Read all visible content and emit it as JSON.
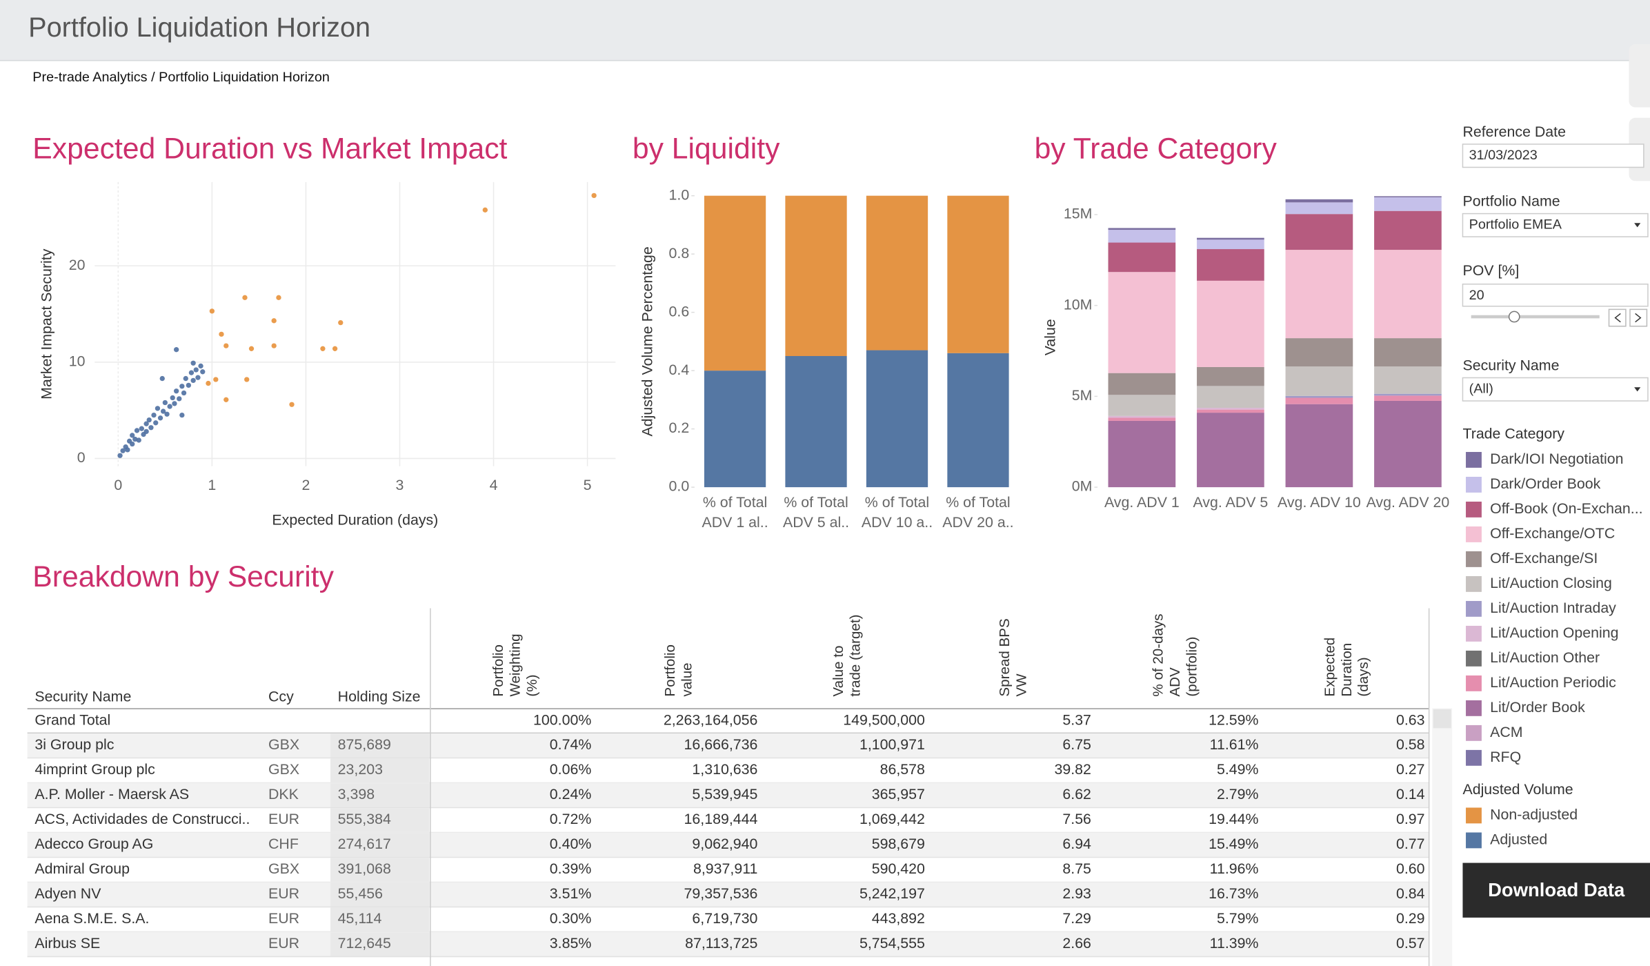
{
  "header": {
    "title": "Portfolio Liquidation Horizon",
    "breadcrumb": "Pre-trade Analytics / Portfolio Liquidation Horizon"
  },
  "chart_data": [
    {
      "type": "scatter",
      "title": "Expected Duration vs Market Impact",
      "x_label": "Expected Duration (days)",
      "y_label": "Market Impact Security",
      "xlim": [
        -0.25,
        5.3
      ],
      "ylim": [
        -0.8,
        28.7
      ],
      "xticks": [
        0,
        1,
        2,
        3,
        4,
        5
      ],
      "yticks": [
        0,
        10,
        20
      ],
      "grid": true,
      "series": [
        {
          "color": "#e8913a",
          "x": [
            3.91,
            5.07,
            1.35,
            1.71,
            1.0,
            1.66,
            2.37,
            1.1,
            1.15,
            1.42,
            1.66,
            2.18,
            2.31,
            1.04,
            1.37,
            1.15,
            1.85,
            0.96
          ],
          "values": [
            25.8,
            27.3,
            16.7,
            16.7,
            15.3,
            14.3,
            14.1,
            12.9,
            11.7,
            11.4,
            11.7,
            11.4,
            11.4,
            8.2,
            8.2,
            6.1,
            5.6,
            7.8
          ]
        },
        {
          "color": "#4e6fa1",
          "x": [
            0.02,
            0.05,
            0.08,
            0.1,
            0.12,
            0.15,
            0.15,
            0.18,
            0.2,
            0.22,
            0.25,
            0.27,
            0.3,
            0.3,
            0.33,
            0.35,
            0.38,
            0.4,
            0.42,
            0.45,
            0.48,
            0.5,
            0.52,
            0.55,
            0.58,
            0.6,
            0.62,
            0.65,
            0.68,
            0.7,
            0.72,
            0.75,
            0.78,
            0.8,
            0.83,
            0.85,
            0.88,
            0.9,
            0.62,
            0.47,
            0.68,
            0.8
          ],
          "values": [
            0.3,
            0.8,
            1.2,
            0.9,
            1.8,
            1.5,
            2.4,
            2.0,
            2.9,
            1.9,
            3.1,
            2.5,
            3.6,
            2.8,
            4.0,
            3.2,
            4.5,
            3.7,
            5.2,
            4.2,
            4.9,
            5.8,
            4.6,
            5.4,
            6.3,
            5.7,
            7.0,
            6.2,
            7.5,
            6.8,
            8.3,
            7.6,
            8.9,
            8.1,
            9.2,
            8.4,
            9.6,
            9.0,
            11.3,
            8.3,
            4.5,
            9.9
          ]
        }
      ]
    },
    {
      "type": "bar",
      "stacked": true,
      "title": "by Liquidity",
      "y_label": "Adjusted Volume Percentage",
      "legend_title": "Adjusted Volume",
      "categories": [
        "% of Total ADV 1 al..",
        "% of Total ADV 5 al..",
        "% of Total ADV 10 a..",
        "% of Total ADV 20 a.."
      ],
      "ylim": [
        0,
        1
      ],
      "yticks": [
        {
          "value": 0,
          "label": "0.0"
        },
        0.2,
        0.4,
        0.6,
        0.8,
        {
          "value": 1,
          "label": "1.0"
        }
      ],
      "grid": false,
      "series": [
        {
          "name": "Non-adjusted",
          "color": "#e49444",
          "values": [
            0.6,
            0.55,
            0.53,
            0.54
          ]
        },
        {
          "name": "Adjusted",
          "color": "#5577a3",
          "values": [
            0.4,
            0.45,
            0.47,
            0.46
          ]
        }
      ]
    },
    {
      "type": "bar",
      "stacked": true,
      "title": "by Trade Category",
      "y_label": "Value",
      "legend_title": "Trade Category",
      "categories": [
        "Avg. ADV 1",
        "Avg. ADV 5",
        "Avg. ADV 10",
        "Avg. ADV 20"
      ],
      "ylim": [
        0,
        16500000
      ],
      "yticks": [
        {
          "value": 0,
          "label": "0M"
        },
        {
          "value": 5000000,
          "label": "5M"
        },
        {
          "value": 10000000,
          "label": "10M"
        },
        {
          "value": 15000000,
          "label": "15M"
        }
      ],
      "grid": false,
      "series": [
        {
          "name": "Dark/IOI Negotiation",
          "color": "#7b6fa0",
          "values": [
            100000,
            100000,
            170000,
            60000
          ]
        },
        {
          "name": "Dark/Order Book",
          "color": "#c5c0ea",
          "values": [
            700000,
            520000,
            640000,
            750000
          ]
        },
        {
          "name": "Off-Book (On-Exchan...",
          "color": "#b65b7f",
          "values": [
            1620000,
            1740000,
            1970000,
            2140000
          ]
        },
        {
          "name": "Off-Exchange/OTC",
          "color": "#f4c0d3",
          "values": [
            5560000,
            4750000,
            4860000,
            4860000
          ]
        },
        {
          "name": "Off-Exchange/SI",
          "color": "#9e918f",
          "values": [
            1200000,
            1040000,
            1560000,
            1560000
          ]
        },
        {
          "name": "Lit/Auction Closing",
          "color": "#c7c2c0",
          "values": [
            1160000,
            1200000,
            1620000,
            1500000
          ]
        },
        {
          "name": "Lit/Auction Intraday",
          "color": "#a09bc8",
          "values": [
            0,
            0,
            100000,
            100000
          ]
        },
        {
          "name": "Lit/Auction Opening",
          "color": "#dbb8d4",
          "values": [
            100000,
            100000,
            0,
            0
          ]
        },
        {
          "name": "Lit/Auction Other",
          "color": "#717171",
          "values": [
            0,
            0,
            0,
            0
          ]
        },
        {
          "name": "Lit/Auction Periodic",
          "color": "#e58eae",
          "values": [
            170000,
            170000,
            350000,
            290000
          ]
        },
        {
          "name": "Lit/Order Book",
          "color": "#a46f9f",
          "values": [
            3650000,
            4100000,
            4570000,
            4750000
          ]
        },
        {
          "name": "ACM",
          "color": "#c9a0c3",
          "values": [
            0,
            0,
            0,
            0
          ]
        },
        {
          "name": "RFQ",
          "color": "#7d74a6",
          "values": [
            0,
            0,
            0,
            0
          ]
        }
      ]
    }
  ],
  "filters": {
    "reference_date": {
      "label": "Reference Date",
      "value": "31/03/2023"
    },
    "portfolio_name": {
      "label": "Portfolio Name",
      "value": "Portfolio EMEA"
    },
    "pov": {
      "label": "POV [%]",
      "value": "20"
    },
    "security_name": {
      "label": "Security Name",
      "value": "(All)"
    }
  },
  "button": "Download Data",
  "table": {
    "title": "Breakdown by Security",
    "columns": [
      "Security Name",
      "Ccy",
      "Holding Size",
      "Portfolio Weighting (%)",
      "Portfolio value",
      "Value to trade (target)",
      "Spread BPS VW",
      "% of 20-days ADV (portfolio)",
      "Expected Duration (days)"
    ],
    "grand_total": {
      "label": "Grand Total",
      "values": [
        "100.00%",
        "2,263,164,056",
        "149,500,000",
        "5.37",
        "12.59%",
        "0.63"
      ]
    },
    "rows": [
      [
        "3i Group plc",
        "GBX",
        "875,689",
        "0.74%",
        "16,666,736",
        "1,100,971",
        "6.75",
        "11.61%",
        "0.58"
      ],
      [
        "4imprint Group plc",
        "GBX",
        "23,203",
        "0.06%",
        "1,310,636",
        "86,578",
        "39.82",
        "5.49%",
        "0.27"
      ],
      [
        "A.P. Moller - Maersk AS",
        "DKK",
        "3,398",
        "0.24%",
        "5,539,945",
        "365,957",
        "6.62",
        "2.79%",
        "0.14"
      ],
      [
        "ACS, Actividades de Construcci..",
        "EUR",
        "555,384",
        "0.72%",
        "16,189,444",
        "1,069,442",
        "7.56",
        "19.44%",
        "0.97"
      ],
      [
        "Adecco Group AG",
        "CHF",
        "274,617",
        "0.40%",
        "9,062,940",
        "598,679",
        "6.94",
        "15.49%",
        "0.77"
      ],
      [
        "Admiral Group",
        "GBX",
        "391,068",
        "0.39%",
        "8,937,911",
        "590,420",
        "8.75",
        "11.96%",
        "0.60"
      ],
      [
        "Adyen NV",
        "EUR",
        "55,456",
        "3.51%",
        "79,357,536",
        "5,242,197",
        "2.93",
        "16.73%",
        "0.84"
      ],
      [
        "Aena S.M.E. S.A.",
        "EUR",
        "45,114",
        "0.30%",
        "6,719,730",
        "443,892",
        "7.29",
        "5.79%",
        "0.29"
      ],
      [
        "Airbus SE",
        "EUR",
        "712,645",
        "3.85%",
        "87,113,725",
        "5,754,555",
        "2.66",
        "11.39%",
        "0.57"
      ]
    ]
  }
}
